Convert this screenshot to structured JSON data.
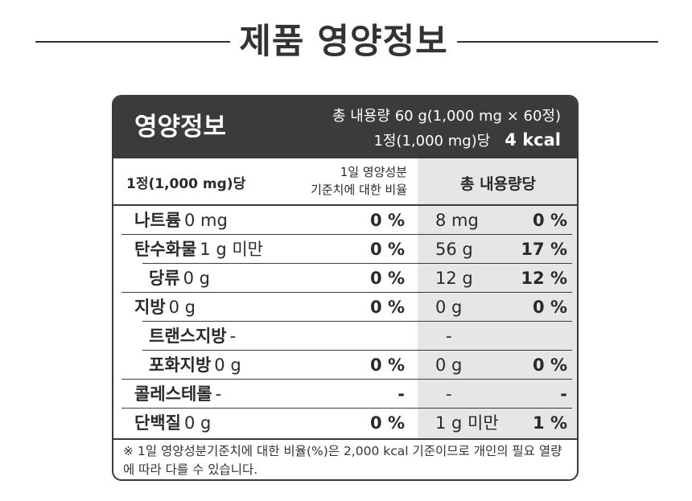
{
  "page_title": "제품 영양정보",
  "label": {
    "title": "영양정보",
    "total_line": "총 내용량 60 g(1,000 mg × 60정)",
    "serving_line": "1정(1,000 mg)당",
    "calories": "4 kcal",
    "per_serving_header": "1정(1,000 mg)당",
    "dv_header_line1": "1일 영양성분",
    "dv_header_line2": "기준치에 대한 비율",
    "total_header": "총 내용량당",
    "rows": [
      {
        "name": "나트륨",
        "amount": "0 mg",
        "dv": "0 %",
        "total_amount": "8 mg",
        "total_dv": "0 %"
      },
      {
        "name": "탄수화물",
        "amount": "1 g 미만",
        "dv": "0 %",
        "total_amount": "56 g",
        "total_dv": "17 %"
      },
      {
        "name": "당류",
        "amount": "0 g",
        "dv": "0 %",
        "total_amount": "12 g",
        "total_dv": "12 %"
      },
      {
        "name": "지방",
        "amount": "0 g",
        "dv": "0 %",
        "total_amount": "0 g",
        "total_dv": "0 %"
      },
      {
        "name": "트랜스지방",
        "amount": "-",
        "dv": "",
        "total_amount": "-",
        "total_dv": ""
      },
      {
        "name": "포화지방",
        "amount": "0 g",
        "dv": "0 %",
        "total_amount": "0 g",
        "total_dv": "0 %"
      },
      {
        "name": "콜레스테롤",
        "amount": "-",
        "dv": "-",
        "total_amount": "-",
        "total_dv": "-"
      },
      {
        "name": "단백질",
        "amount": "0 g",
        "dv": "0 %",
        "total_amount": "1 g 미만",
        "total_dv": "1 %"
      }
    ],
    "footnote": "※ 1일 영양성분기준치에 대한 비율(%)은 2,000 kcal 기준이므로 개인의 필요 열량에 따라 다를 수 있습니다."
  }
}
